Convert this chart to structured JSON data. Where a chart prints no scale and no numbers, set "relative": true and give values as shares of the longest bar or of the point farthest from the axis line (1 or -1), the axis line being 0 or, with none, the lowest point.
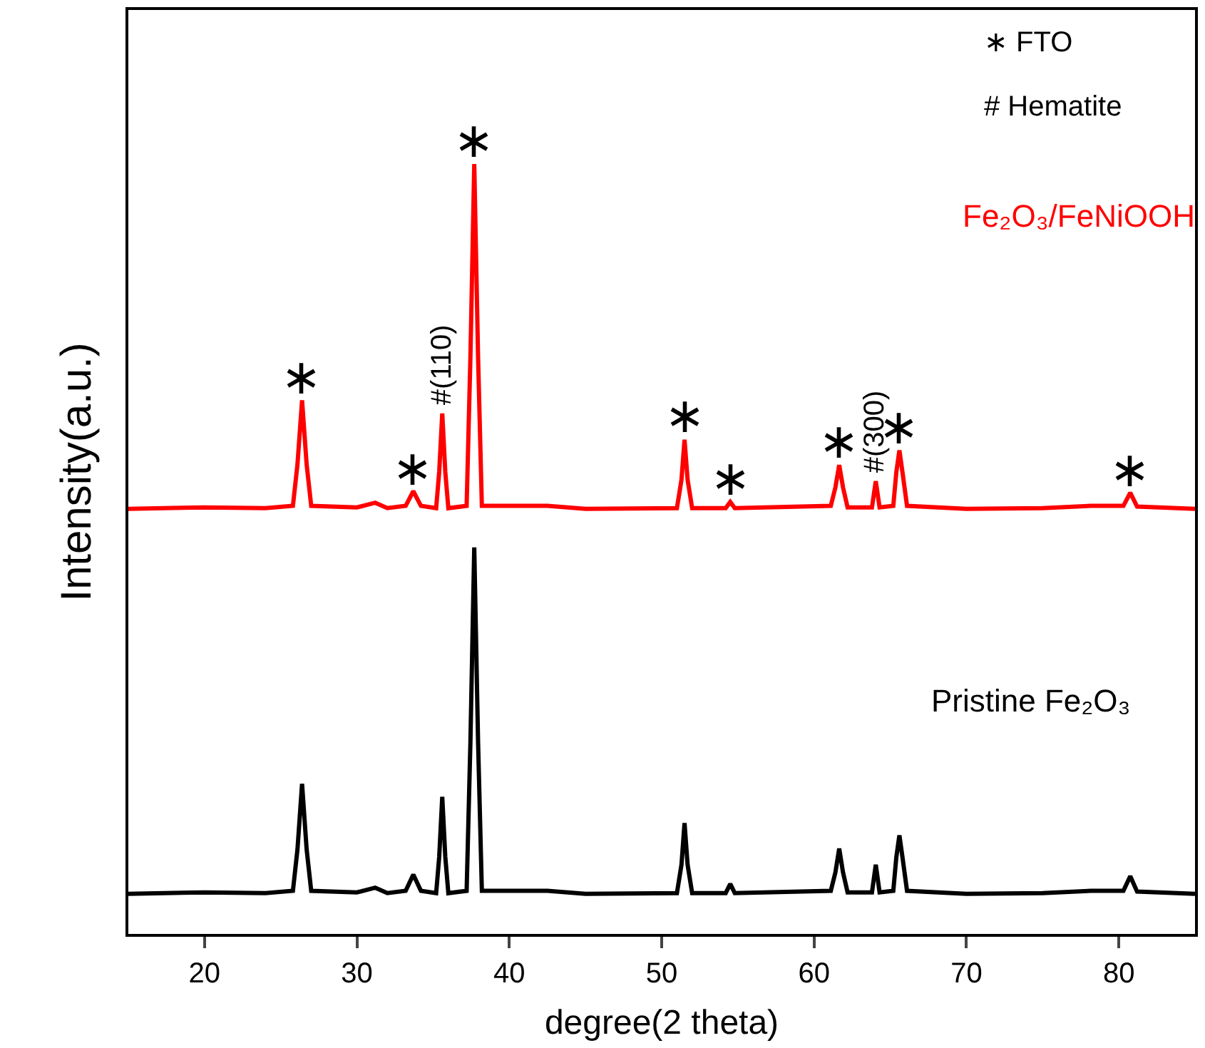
{
  "chart_data": {
    "type": "line",
    "relative": true,
    "xlabel": "degree(2 theta)",
    "ylabel": "Intensity(a.u.)",
    "xlim": [
      15,
      85
    ],
    "xticks": [
      20,
      30,
      40,
      50,
      60,
      70,
      80
    ],
    "tick_labels": "x",
    "legend": false,
    "marker": "none",
    "line_style": "solid",
    "x": [
      15,
      20,
      24,
      25.8,
      26.1,
      26.4,
      26.7,
      27,
      30,
      31.2,
      32,
      33.2,
      33.7,
      34.2,
      35.2,
      35.4,
      35.6,
      35.8,
      36,
      37.2,
      37.45,
      37.7,
      37.95,
      38.2,
      42.5,
      45,
      51,
      51.3,
      51.5,
      51.7,
      52,
      54.2,
      54.5,
      54.8,
      61.1,
      61.4,
      61.65,
      61.9,
      62.2,
      63.8,
      64.05,
      64.3,
      65.2,
      65.4,
      65.6,
      65.8,
      66.1,
      70,
      75,
      78.2,
      80.3,
      80.75,
      81.2,
      85
    ],
    "series": [
      {
        "name": "Fe₂O₃/FeNiOOH",
        "color": "#ff0000",
        "values": [
          0.552,
          0.554,
          0.553,
          0.556,
          0.61,
          0.693,
          0.61,
          0.556,
          0.554,
          0.56,
          0.553,
          0.556,
          0.575,
          0.556,
          0.553,
          0.6,
          0.676,
          0.6,
          0.553,
          0.556,
          0.75,
          1.0,
          0.75,
          0.556,
          0.556,
          0.552,
          0.553,
          0.59,
          0.642,
          0.59,
          0.553,
          0.553,
          0.561,
          0.553,
          0.556,
          0.58,
          0.609,
          0.58,
          0.554,
          0.554,
          0.588,
          0.554,
          0.556,
          0.6,
          0.628,
          0.6,
          0.556,
          0.552,
          0.553,
          0.556,
          0.556,
          0.573,
          0.555,
          0.552
        ]
      },
      {
        "name": "Pristine Fe₂O₃",
        "color": "#000000",
        "values": [
          0.052,
          0.054,
          0.053,
          0.056,
          0.11,
          0.195,
          0.11,
          0.056,
          0.054,
          0.06,
          0.053,
          0.056,
          0.077,
          0.056,
          0.053,
          0.1,
          0.178,
          0.1,
          0.053,
          0.056,
          0.25,
          0.502,
          0.25,
          0.056,
          0.056,
          0.052,
          0.053,
          0.09,
          0.144,
          0.09,
          0.053,
          0.053,
          0.065,
          0.053,
          0.056,
          0.08,
          0.111,
          0.08,
          0.054,
          0.054,
          0.09,
          0.054,
          0.056,
          0.1,
          0.128,
          0.1,
          0.056,
          0.052,
          0.053,
          0.056,
          0.056,
          0.075,
          0.055,
          0.052
        ]
      }
    ],
    "annotations": [
      "∗ FTO",
      "# Hematite",
      {
        "text": "∗",
        "x": 26.4,
        "y": 0.693
      },
      {
        "text": "∗",
        "x": 33.7,
        "y": 0.575
      },
      {
        "text": "#(110)",
        "x": 35.6,
        "y": 0.676
      },
      {
        "text": "∗",
        "x": 37.7,
        "y": 1.0
      },
      {
        "text": "∗",
        "x": 51.5,
        "y": 0.642
      },
      {
        "text": "∗",
        "x": 54.5,
        "y": 0.561
      },
      {
        "text": "∗",
        "x": 61.65,
        "y": 0.609
      },
      {
        "text": "#(300)",
        "x": 64.05,
        "y": 0.588
      },
      {
        "text": "∗",
        "x": 65.6,
        "y": 0.628
      },
      {
        "text": "∗",
        "x": 80.75,
        "y": 0.573
      }
    ]
  }
}
